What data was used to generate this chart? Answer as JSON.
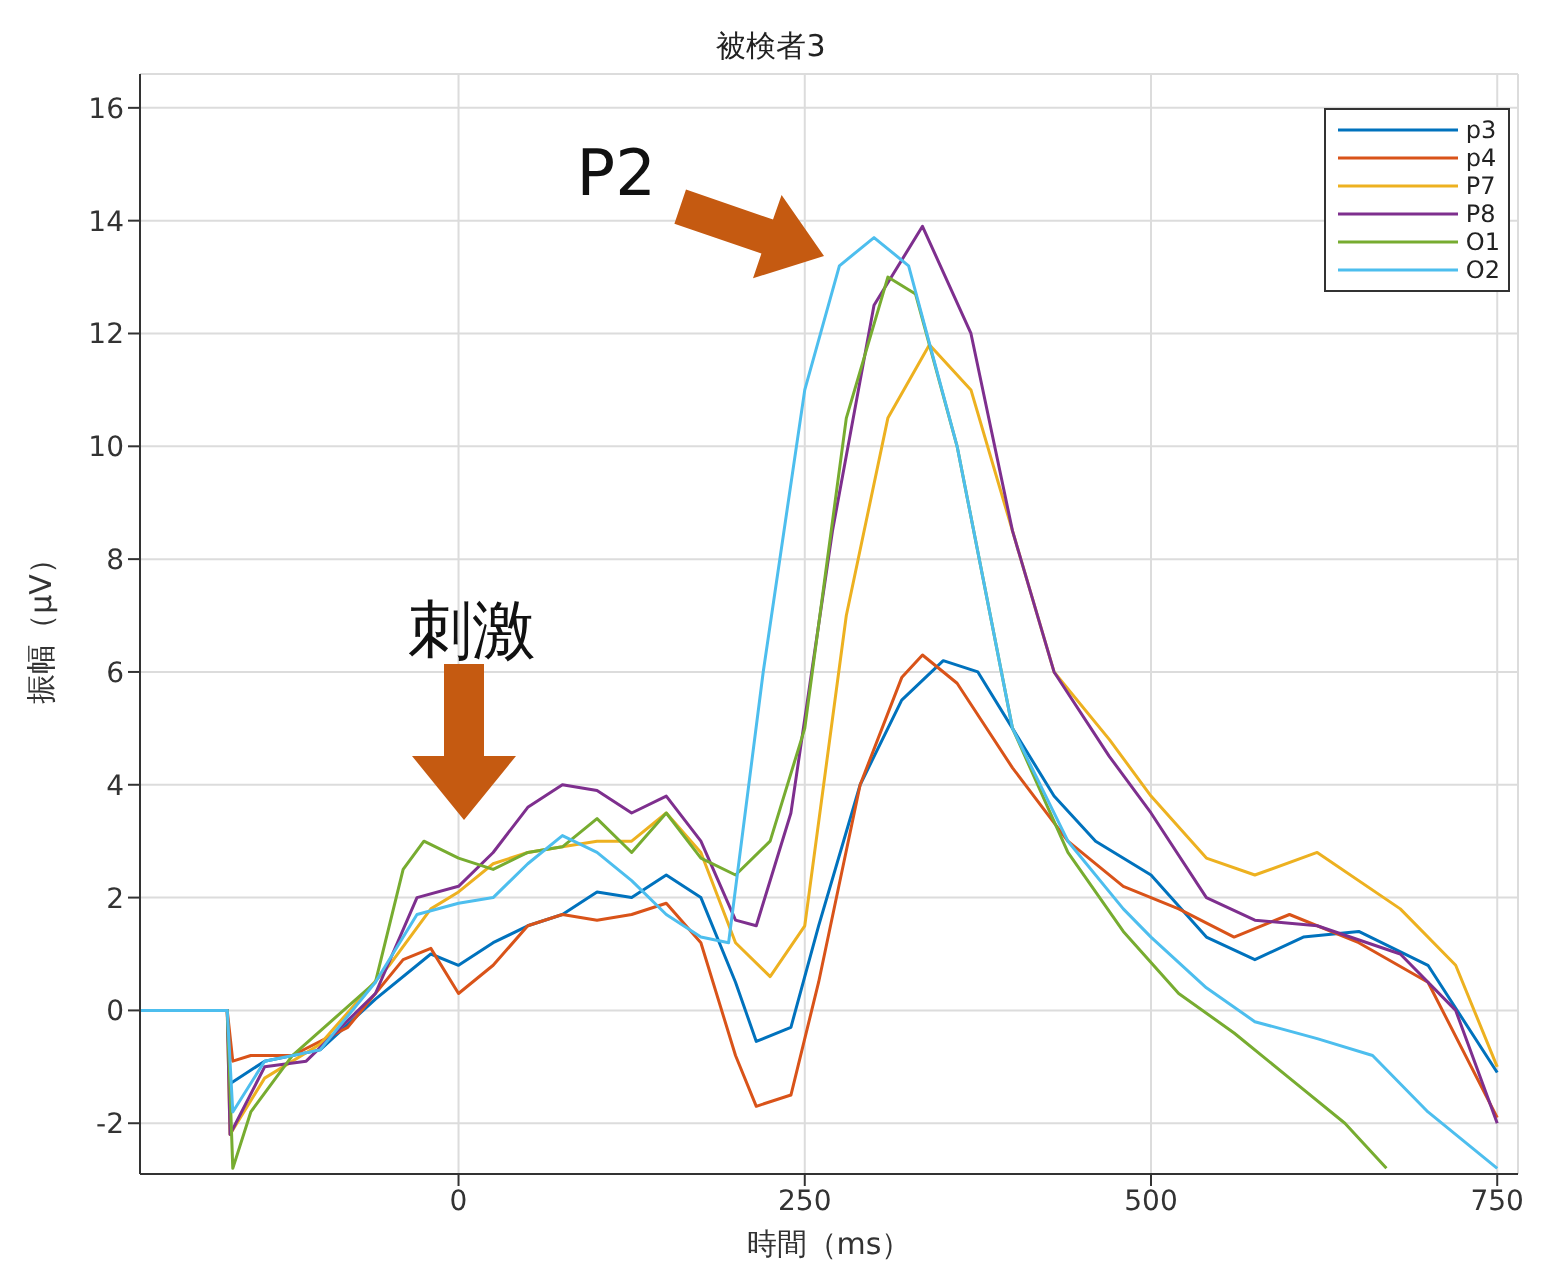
{
  "chart_data": {
    "type": "line",
    "title": "被検者3",
    "xlabel": "時間（ms）",
    "ylabel": "振幅（μV）",
    "xlim": [
      -230,
      765
    ],
    "xticks": [
      0,
      250,
      500,
      750
    ],
    "ylim": [
      -2.9,
      16.6
    ],
    "yticks": [
      -2,
      0,
      2,
      4,
      6,
      8,
      10,
      12,
      14,
      16
    ],
    "grid": true,
    "legend": "top right",
    "annotations": [
      "刺激",
      "P2"
    ],
    "series": [
      {
        "name": "p3",
        "color": "#0072bd",
        "x": [
          -230,
          -167,
          -165,
          -140,
          -100,
          -60,
          -20,
          0,
          25,
          50,
          75,
          100,
          125,
          150,
          175,
          200,
          215,
          240,
          260,
          290,
          320,
          350,
          375,
          400,
          430,
          460,
          500,
          540,
          575,
          610,
          650,
          700,
          750
        ],
        "values": [
          0,
          0,
          -1.3,
          -0.9,
          -0.7,
          0.2,
          1.0,
          0.8,
          1.2,
          1.5,
          1.7,
          2.1,
          2.0,
          2.4,
          2.0,
          0.5,
          -0.55,
          -0.3,
          1.5,
          4.0,
          5.5,
          6.2,
          6.0,
          5.0,
          3.8,
          3.0,
          2.4,
          1.3,
          0.9,
          1.3,
          1.4,
          0.8,
          -1.1
        ]
      },
      {
        "name": "p4",
        "color": "#d95319",
        "x": [
          -230,
          -167,
          -163,
          -150,
          -120,
          -80,
          -40,
          -20,
          0,
          25,
          50,
          75,
          100,
          125,
          150,
          175,
          200,
          215,
          240,
          260,
          290,
          320,
          335,
          360,
          400,
          440,
          480,
          520,
          560,
          600,
          650,
          700,
          750
        ],
        "values": [
          0,
          0,
          -0.9,
          -0.8,
          -0.8,
          -0.3,
          0.9,
          1.1,
          0.3,
          0.8,
          1.5,
          1.7,
          1.6,
          1.7,
          1.9,
          1.2,
          -0.8,
          -1.7,
          -1.5,
          0.5,
          4.0,
          5.9,
          6.3,
          5.8,
          4.3,
          3.0,
          2.2,
          1.8,
          1.3,
          1.7,
          1.2,
          0.5,
          -1.9
        ]
      },
      {
        "name": "P7",
        "color": "#edb120",
        "x": [
          -230,
          -167,
          -165,
          -140,
          -100,
          -50,
          -20,
          0,
          25,
          50,
          75,
          100,
          125,
          150,
          175,
          200,
          225,
          250,
          280,
          310,
          340,
          370,
          400,
          430,
          470,
          500,
          540,
          575,
          620,
          680,
          720,
          750
        ],
        "values": [
          0,
          0,
          -2.2,
          -1.2,
          -0.6,
          0.8,
          1.8,
          2.1,
          2.6,
          2.8,
          2.9,
          3.0,
          3.0,
          3.5,
          2.8,
          1.2,
          0.6,
          1.5,
          7.0,
          10.5,
          11.8,
          11.0,
          8.5,
          6.0,
          4.8,
          3.8,
          2.7,
          2.4,
          2.8,
          1.8,
          0.8,
          -1.0
        ]
      },
      {
        "name": "P8",
        "color": "#7e2f8e",
        "x": [
          -230,
          -167,
          -165,
          -140,
          -110,
          -60,
          -30,
          0,
          25,
          50,
          75,
          100,
          125,
          150,
          175,
          200,
          215,
          240,
          270,
          300,
          335,
          370,
          400,
          430,
          470,
          500,
          540,
          575,
          620,
          680,
          720,
          750
        ],
        "values": [
          0,
          0,
          -2.2,
          -1.0,
          -0.9,
          0.3,
          2.0,
          2.2,
          2.8,
          3.6,
          4.0,
          3.9,
          3.5,
          3.8,
          3.0,
          1.6,
          1.5,
          3.5,
          8.5,
          12.5,
          13.9,
          12.0,
          8.5,
          6.0,
          4.5,
          3.5,
          2.0,
          1.6,
          1.5,
          1.0,
          0.0,
          -2.0
        ]
      },
      {
        "name": "O1",
        "color": "#77ac30",
        "x": [
          -230,
          -167,
          -163,
          -150,
          -120,
          -60,
          -40,
          -25,
          0,
          25,
          50,
          75,
          100,
          125,
          150,
          175,
          200,
          225,
          250,
          280,
          310,
          330,
          360,
          400,
          440,
          480,
          520,
          560,
          600,
          640,
          670
        ],
        "values": [
          0,
          0,
          -2.8,
          -1.8,
          -0.8,
          0.5,
          2.5,
          3.0,
          2.7,
          2.5,
          2.8,
          2.9,
          3.4,
          2.8,
          3.5,
          2.7,
          2.4,
          3.0,
          5.0,
          10.5,
          13.0,
          12.7,
          10.0,
          5.0,
          2.8,
          1.4,
          0.3,
          -0.4,
          -1.2,
          -2.0,
          -2.8
        ]
      },
      {
        "name": "O2",
        "color": "#4dbeee",
        "x": [
          -230,
          -167,
          -163,
          -140,
          -100,
          -60,
          -30,
          0,
          25,
          50,
          75,
          100,
          125,
          150,
          175,
          195,
          220,
          250,
          275,
          300,
          325,
          360,
          400,
          440,
          480,
          500,
          540,
          575,
          620,
          660,
          700,
          750
        ],
        "values": [
          0,
          0,
          -1.8,
          -0.9,
          -0.7,
          0.5,
          1.7,
          1.9,
          2.0,
          2.6,
          3.1,
          2.8,
          2.3,
          1.7,
          1.3,
          1.2,
          6.0,
          11.0,
          13.2,
          13.7,
          13.2,
          10.0,
          5.0,
          3.0,
          1.8,
          1.3,
          0.4,
          -0.2,
          -0.5,
          -0.8,
          -1.8,
          -2.8
        ]
      }
    ]
  }
}
